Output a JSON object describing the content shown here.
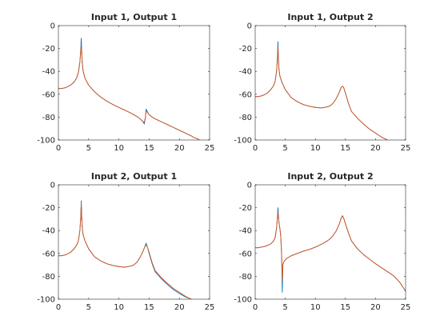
{
  "figure": {
    "background": "#ffffff",
    "axes_color": "#262626"
  },
  "chart_data": [
    {
      "type": "line",
      "title": "Input 1, Output 1",
      "xlabel": "",
      "ylabel": "",
      "xlim": [
        0,
        25
      ],
      "ylim": [
        -100,
        0
      ],
      "xticks": [
        "0",
        "5",
        "10",
        "15",
        "20",
        "25"
      ],
      "yticks": [
        "0",
        "-20",
        "-40",
        "-60",
        "-80",
        "-100"
      ],
      "grid": false,
      "legend": "none",
      "series": [
        {
          "color": "#0072bd",
          "x": [
            0,
            0.5,
            1,
            1.5,
            2,
            2.5,
            3,
            3.3,
            3.55,
            3.7,
            3.78,
            3.85,
            3.95,
            4.1,
            4.4,
            5,
            6,
            7,
            8,
            9,
            10,
            11,
            12,
            13,
            13.5,
            14,
            14.2,
            14.4,
            14.5,
            14.6,
            14.8,
            15,
            15.5,
            16,
            17,
            18,
            19,
            20,
            21,
            22,
            22.5,
            23,
            23.3,
            23.5
          ],
          "y": [
            -55,
            -55,
            -54.5,
            -53.5,
            -52,
            -50,
            -46,
            -41,
            -32,
            -21,
            -11,
            -22,
            -33,
            -40,
            -46,
            -52,
            -58,
            -62.5,
            -66,
            -69,
            -71.5,
            -74,
            -76.5,
            -79.5,
            -81.5,
            -84,
            -86,
            -80,
            -73,
            -74,
            -76,
            -78,
            -80,
            -81.5,
            -84,
            -86.5,
            -89,
            -91.5,
            -94,
            -96.5,
            -98,
            -99,
            -100,
            -100
          ]
        },
        {
          "color": "#d95319",
          "x": [
            0,
            0.5,
            1,
            1.5,
            2,
            2.5,
            3,
            3.3,
            3.55,
            3.7,
            3.78,
            3.85,
            3.95,
            4.1,
            4.4,
            5,
            6,
            7,
            8,
            9,
            10,
            11,
            12,
            13,
            13.5,
            14,
            14.2,
            14.4,
            14.5,
            14.6,
            14.8,
            15,
            15.5,
            16,
            17,
            18,
            19,
            20,
            21,
            22,
            22.5,
            23,
            23.3,
            23.5
          ],
          "y": [
            -55,
            -55,
            -54.5,
            -53.5,
            -52,
            -50,
            -46,
            -41,
            -32,
            -22,
            -17,
            -23,
            -33,
            -40,
            -46,
            -52,
            -58,
            -62.5,
            -66,
            -69,
            -71.5,
            -74,
            -76.5,
            -79.5,
            -81.5,
            -84,
            -84.5,
            -80,
            -75,
            -75,
            -76.5,
            -78,
            -80,
            -81.5,
            -84,
            -86.5,
            -89,
            -91.5,
            -94,
            -96.5,
            -98,
            -99,
            -100,
            -100
          ]
        }
      ]
    },
    {
      "type": "line",
      "title": "Input 1, Output 2",
      "xlabel": "",
      "ylabel": "",
      "xlim": [
        0,
        25
      ],
      "ylim": [
        -100,
        0
      ],
      "xticks": [
        "0",
        "5",
        "10",
        "15",
        "20",
        "25"
      ],
      "yticks": [
        "0",
        "-20",
        "-40",
        "-60",
        "-80",
        "-100"
      ],
      "grid": false,
      "legend": "none",
      "series": [
        {
          "color": "#0072bd",
          "x": [
            0,
            0.5,
            1,
            1.5,
            2,
            2.5,
            3,
            3.3,
            3.55,
            3.7,
            3.78,
            3.85,
            3.95,
            4.1,
            4.4,
            5,
            6,
            7,
            8,
            9,
            10,
            11,
            12,
            12.5,
            13,
            13.5,
            14,
            14.3,
            14.5,
            14.7,
            15,
            15.5,
            16,
            17,
            18,
            19,
            20,
            21,
            22
          ],
          "y": [
            -62,
            -62,
            -61.5,
            -60.5,
            -59,
            -56.5,
            -53,
            -49,
            -40,
            -28,
            -14,
            -27,
            -38,
            -44,
            -49,
            -56,
            -63,
            -66.5,
            -69,
            -70.5,
            -71.5,
            -72,
            -71,
            -70,
            -67.5,
            -63.5,
            -58,
            -54,
            -53,
            -54,
            -59,
            -68,
            -75,
            -81,
            -86,
            -90.5,
            -94,
            -97.5,
            -100
          ]
        },
        {
          "color": "#d95319",
          "x": [
            0,
            0.5,
            1,
            1.5,
            2,
            2.5,
            3,
            3.3,
            3.55,
            3.7,
            3.78,
            3.85,
            3.95,
            4.1,
            4.4,
            5,
            6,
            7,
            8,
            9,
            10,
            11,
            12,
            12.5,
            13,
            13.5,
            14,
            14.3,
            14.5,
            14.7,
            15,
            15.5,
            16,
            17,
            18,
            19,
            20,
            21,
            22
          ],
          "y": [
            -62,
            -62,
            -61.5,
            -60.5,
            -59,
            -56.5,
            -53,
            -49,
            -40,
            -28,
            -19,
            -28,
            -38,
            -44,
            -49,
            -56,
            -63,
            -66.5,
            -69,
            -70.5,
            -71.5,
            -72,
            -71,
            -70,
            -67.5,
            -63.5,
            -58,
            -54,
            -53,
            -54,
            -59,
            -68,
            -75,
            -81,
            -86,
            -90.5,
            -94,
            -97.5,
            -100
          ]
        }
      ]
    },
    {
      "type": "line",
      "title": "Input 2, Output 1",
      "xlabel": "",
      "ylabel": "",
      "xlim": [
        0,
        25
      ],
      "ylim": [
        -100,
        0
      ],
      "xticks": [
        "0",
        "5",
        "10",
        "15",
        "20",
        "25"
      ],
      "yticks": [
        "0",
        "-20",
        "-40",
        "-60",
        "-80",
        "-100"
      ],
      "grid": false,
      "legend": "none",
      "series": [
        {
          "color": "#0072bd",
          "x": [
            0,
            0.5,
            1,
            1.5,
            2,
            2.5,
            3,
            3.3,
            3.55,
            3.7,
            3.78,
            3.85,
            3.95,
            4.1,
            4.4,
            5,
            6,
            7,
            8,
            9,
            10,
            11,
            12,
            12.5,
            13,
            13.5,
            14,
            14.3,
            14.5,
            14.7,
            15,
            15.5,
            16,
            17,
            18,
            19,
            20,
            21,
            22
          ],
          "y": [
            -62,
            -62,
            -61.5,
            -60.5,
            -59,
            -56.5,
            -53,
            -49,
            -40,
            -28,
            -14,
            -27,
            -38,
            -44,
            -49,
            -56,
            -63,
            -66.5,
            -69,
            -70.5,
            -71.5,
            -72,
            -71,
            -70,
            -67.5,
            -63.5,
            -58,
            -54,
            -51,
            -54,
            -60,
            -69,
            -76,
            -82,
            -87,
            -91.5,
            -95,
            -98,
            -100
          ]
        },
        {
          "color": "#d95319",
          "x": [
            0,
            0.5,
            1,
            1.5,
            2,
            2.5,
            3,
            3.3,
            3.55,
            3.7,
            3.78,
            3.85,
            3.95,
            4.1,
            4.4,
            5,
            6,
            7,
            8,
            9,
            10,
            11,
            12,
            12.5,
            13,
            13.5,
            14,
            14.3,
            14.5,
            14.7,
            15,
            15.5,
            16,
            17,
            18,
            19,
            20,
            21,
            22
          ],
          "y": [
            -62,
            -62,
            -61.5,
            -60.5,
            -59,
            -56.5,
            -53,
            -49,
            -40,
            -28,
            -16,
            -28,
            -38,
            -44,
            -49,
            -56,
            -63,
            -66.5,
            -69,
            -70.5,
            -71.5,
            -72,
            -71,
            -70,
            -67.5,
            -63.5,
            -58,
            -54,
            -53,
            -54,
            -59,
            -68,
            -75,
            -81,
            -86,
            -90.5,
            -94,
            -97.5,
            -100
          ]
        }
      ]
    },
    {
      "type": "line",
      "title": "Input 2, Output 2",
      "xlabel": "",
      "ylabel": "",
      "xlim": [
        0,
        25
      ],
      "ylim": [
        -100,
        0
      ],
      "xticks": [
        "0",
        "5",
        "10",
        "15",
        "20",
        "25"
      ],
      "yticks": [
        "0",
        "-20",
        "-40",
        "-60",
        "-80",
        "-100"
      ],
      "grid": false,
      "legend": "none",
      "series": [
        {
          "color": "#0072bd",
          "x": [
            0,
            0.5,
            1,
            1.5,
            2,
            2.5,
            3,
            3.3,
            3.55,
            3.7,
            3.78,
            3.85,
            3.95,
            4.1,
            4.25,
            4.4,
            4.5,
            4.6,
            4.8,
            5.2,
            6,
            7,
            8,
            9,
            10,
            11,
            12,
            12.5,
            13,
            13.5,
            14,
            14.3,
            14.5,
            14.7,
            15,
            15.5,
            16,
            17,
            18,
            19,
            20,
            21,
            22,
            23,
            24,
            24.5,
            25
          ],
          "y": [
            -55,
            -55,
            -54.5,
            -54,
            -53,
            -52,
            -49.5,
            -46.5,
            -38,
            -28,
            -20,
            -26,
            -33,
            -38,
            -45,
            -62,
            -94,
            -70,
            -67,
            -64.5,
            -62,
            -60,
            -58,
            -56.5,
            -54.5,
            -52,
            -49,
            -47,
            -44,
            -40,
            -34,
            -29,
            -27,
            -29,
            -34,
            -42,
            -49,
            -56,
            -61,
            -65,
            -69,
            -72.5,
            -76,
            -79.5,
            -85,
            -89,
            -93
          ]
        },
        {
          "color": "#d95319",
          "x": [
            0,
            0.5,
            1,
            1.5,
            2,
            2.5,
            3,
            3.3,
            3.55,
            3.7,
            3.78,
            3.85,
            3.95,
            4.1,
            4.25,
            4.4,
            4.5,
            4.6,
            4.8,
            5.2,
            6,
            7,
            8,
            9,
            10,
            11,
            12,
            12.5,
            13,
            13.5,
            14,
            14.3,
            14.5,
            14.7,
            15,
            15.5,
            16,
            17,
            18,
            19,
            20,
            21,
            22,
            23,
            24,
            24.5,
            25
          ],
          "y": [
            -55,
            -55,
            -54.5,
            -54,
            -53,
            -52,
            -49.5,
            -46.5,
            -38,
            -28,
            -24,
            -27,
            -33,
            -38,
            -45,
            -62,
            -84,
            -70,
            -67,
            -64.5,
            -62,
            -60,
            -58,
            -56.5,
            -54.5,
            -52,
            -49,
            -47,
            -44,
            -40,
            -34,
            -29,
            -27,
            -29,
            -34,
            -42,
            -49,
            -56,
            -61,
            -65,
            -69,
            -72.5,
            -76,
            -79.5,
            -85,
            -89,
            -93
          ]
        }
      ]
    }
  ]
}
